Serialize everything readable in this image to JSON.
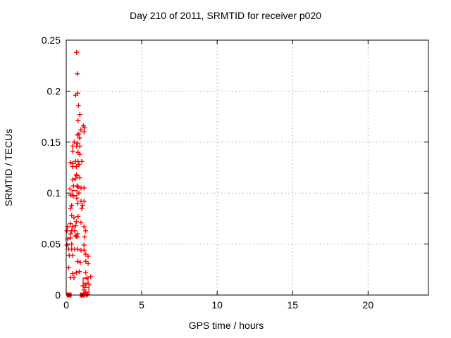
{
  "chart_data": {
    "type": "scatter",
    "title": "Day 210 of 2011, SRMTID for receiver p020",
    "xlabel": "GPS time / hours",
    "ylabel": "SRMTID / TECUs",
    "xlim": [
      0,
      24
    ],
    "ylim": [
      0,
      0.25
    ],
    "x_ticks": [
      0,
      5,
      10,
      15,
      20
    ],
    "x_tick_labels": [
      "0",
      "5",
      "10",
      "15",
      "20"
    ],
    "y_ticks": [
      0,
      0.05,
      0.1,
      0.15,
      0.2,
      0.25
    ],
    "y_tick_labels": [
      "0",
      "0.05",
      "0.1",
      "0.15",
      "0.2",
      "0.25"
    ],
    "grid": true,
    "legend": "none",
    "colors": {
      "marker": "#ff0000",
      "axis": "#000000",
      "grid": "#a8a8a8",
      "background": "#ffffff"
    },
    "series": [
      {
        "name": "srmtid-plus-markers",
        "marker": "plus",
        "points": [
          [
            0.69,
            0.238
          ],
          [
            0.73,
            0.217
          ],
          [
            0.76,
            0.198
          ],
          [
            0.62,
            0.196
          ],
          [
            0.81,
            0.186
          ],
          [
            0.9,
            0.177
          ],
          [
            0.78,
            0.171
          ],
          [
            1.14,
            0.166
          ],
          [
            1.21,
            0.164
          ],
          [
            0.97,
            0.162
          ],
          [
            1.18,
            0.16
          ],
          [
            0.84,
            0.158
          ],
          [
            0.74,
            0.157
          ],
          [
            0.88,
            0.154
          ],
          [
            0.53,
            0.15
          ],
          [
            0.75,
            0.149
          ],
          [
            0.43,
            0.146
          ],
          [
            0.69,
            0.146
          ],
          [
            0.9,
            0.146
          ],
          [
            0.43,
            0.141
          ],
          [
            0.78,
            0.14
          ],
          [
            0.9,
            0.138
          ],
          [
            0.62,
            0.131
          ],
          [
            0.78,
            0.131
          ],
          [
            1.03,
            0.131
          ],
          [
            0.28,
            0.13
          ],
          [
            0.44,
            0.129
          ],
          [
            0.85,
            0.128
          ],
          [
            0.43,
            0.126
          ],
          [
            0.67,
            0.126
          ],
          [
            0.67,
            0.118
          ],
          [
            0.7,
            0.117
          ],
          [
            0.9,
            0.115
          ],
          [
            0.59,
            0.114
          ],
          [
            0.43,
            0.113
          ],
          [
            0.72,
            0.107
          ],
          [
            0.48,
            0.107
          ],
          [
            0.78,
            0.106
          ],
          [
            0.98,
            0.105
          ],
          [
            1.18,
            0.105
          ],
          [
            0.25,
            0.104
          ],
          [
            0.84,
            0.1
          ],
          [
            0.28,
            0.098
          ],
          [
            0.47,
            0.097
          ],
          [
            0.7,
            0.095
          ],
          [
            0.98,
            0.092
          ],
          [
            1.18,
            0.092
          ],
          [
            0.75,
            0.09
          ],
          [
            0.36,
            0.088
          ],
          [
            1.09,
            0.088
          ],
          [
            0.28,
            0.085
          ],
          [
            1.03,
            0.085
          ],
          [
            0.36,
            0.078
          ],
          [
            0.78,
            0.077
          ],
          [
            0.51,
            0.076
          ],
          [
            0.67,
            0.072
          ],
          [
            0.28,
            0.07
          ],
          [
            0.98,
            0.071
          ],
          [
            0.09,
            0.067
          ],
          [
            0.43,
            0.067
          ],
          [
            0.62,
            0.068
          ],
          [
            1.18,
            0.067
          ],
          [
            0.05,
            0.063
          ],
          [
            0.36,
            0.063
          ],
          [
            0.56,
            0.063
          ],
          [
            0.28,
            0.06
          ],
          [
            0.75,
            0.06
          ],
          [
            1.29,
            0.063
          ],
          [
            0.62,
            0.058
          ],
          [
            0.67,
            0.058
          ],
          [
            0.72,
            0.057
          ],
          [
            0.28,
            0.056
          ],
          [
            0.09,
            0.055
          ],
          [
            1.21,
            0.057
          ],
          [
            0.36,
            0.05
          ],
          [
            1.18,
            0.049
          ],
          [
            0.05,
            0.049
          ],
          [
            0.16,
            0.045
          ],
          [
            0.36,
            0.045
          ],
          [
            0.56,
            0.045
          ],
          [
            0.75,
            0.045
          ],
          [
            0.98,
            0.044
          ],
          [
            1.18,
            0.044
          ],
          [
            0.2,
            0.039
          ],
          [
            0.43,
            0.039
          ],
          [
            1.29,
            0.04
          ],
          [
            1.45,
            0.038
          ],
          [
            0.75,
            0.033
          ],
          [
            0.93,
            0.032
          ],
          [
            1.29,
            0.033
          ],
          [
            1.45,
            0.031
          ],
          [
            0.16,
            0.027
          ],
          [
            0.67,
            0.022
          ],
          [
            0.87,
            0.023
          ],
          [
            1.29,
            0.022
          ],
          [
            0.43,
            0.021
          ],
          [
            0.28,
            0.017
          ],
          [
            0.51,
            0.017
          ],
          [
            1.37,
            0.017
          ],
          [
            1.62,
            0.018
          ],
          [
            1.12,
            0.009
          ],
          [
            1.51,
            0.01
          ],
          [
            1.29,
            0.01
          ],
          [
            1.18,
            0.005
          ],
          [
            1.29,
            0.003
          ],
          [
            1.4,
            0.001
          ],
          [
            1.33,
            0.0
          ],
          [
            1.42,
            0.0005
          ]
        ]
      },
      {
        "name": "srmtid-open-square-markers",
        "marker": "open-square",
        "points": [
          [
            0.55,
            0.1
          ],
          [
            1.28,
            0.014
          ],
          [
            1.34,
            0.005
          ]
        ]
      },
      {
        "name": "srmtid-filled-square-markers",
        "marker": "filled-square",
        "points": [
          [
            0.19,
            0.0
          ],
          [
            1.07,
            0.0
          ]
        ]
      }
    ]
  }
}
